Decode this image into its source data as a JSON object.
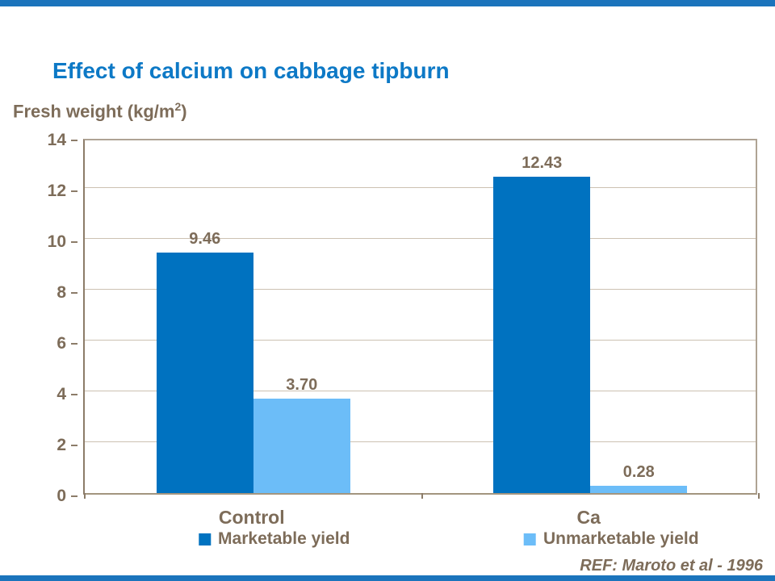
{
  "slide": {
    "title": "Effect of calcium on cabbage tipburn",
    "axis_title": {
      "prefix": "Fresh weight (kg/m",
      "sup": "2",
      "suffix": ")"
    },
    "reference": "REF: Maroto et al - 1996"
  },
  "colors": {
    "accent_bar": "#1b74bc",
    "title_text": "#0d79c6",
    "body_text": "#7d6c59",
    "axis_line": "#8c7c69",
    "plot_border": "#afa394",
    "gridline": "#ccc1b2"
  },
  "chart_data": {
    "type": "bar",
    "title": "Effect of calcium on cabbage tipburn",
    "ylabel": "Fresh weight (kg/m2)",
    "xlabel": "",
    "categories": [
      "Control",
      "Ca"
    ],
    "series": [
      {
        "name": "Marketable yield",
        "color": "#0072c0",
        "values": [
          9.46,
          12.43
        ],
        "labels": [
          "9.46",
          "12.43"
        ]
      },
      {
        "name": "Unmarketable yield",
        "color": "#6cbdf8",
        "values": [
          3.7,
          0.28
        ],
        "labels": [
          "3.70",
          "0.28"
        ]
      }
    ],
    "ylim": [
      0,
      14
    ],
    "yticks": [
      0,
      2,
      4,
      6,
      8,
      10,
      12,
      14
    ],
    "grid": true,
    "legend_position": "bottom"
  }
}
